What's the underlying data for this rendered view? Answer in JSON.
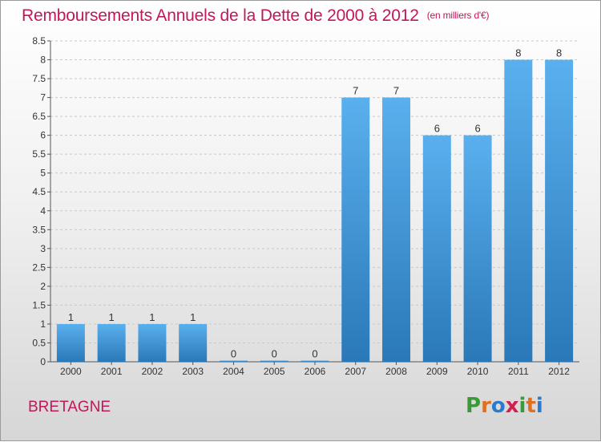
{
  "title": "Remboursements Annuels de la Dette de 2000 à 2012",
  "unit": "(en milliers d'€)",
  "region": "BRETAGNE",
  "brand": {
    "text": "Proxiti",
    "letters": [
      "P",
      "r",
      "o",
      "x",
      "i",
      "t",
      "i"
    ],
    "colors": [
      "#3a9a3a",
      "#e07020",
      "#2a7ad0",
      "#d02050",
      "#3a9a3a",
      "#e07020",
      "#2a7ad0"
    ]
  },
  "colors": {
    "title": "#c0185a",
    "bar_light": "#5ab0ee",
    "bar_dark": "#2a78b8",
    "grid": "#c8c8c8"
  },
  "chart_data": {
    "type": "bar",
    "categories": [
      "2000",
      "2001",
      "2002",
      "2003",
      "2004",
      "2005",
      "2006",
      "2007",
      "2008",
      "2009",
      "2010",
      "2011",
      "2012"
    ],
    "values": [
      1,
      1,
      1,
      1,
      0,
      0,
      0,
      7,
      7,
      6,
      6,
      8,
      8
    ],
    "data_labels": [
      "1",
      "1",
      "1",
      "1",
      "0",
      "0",
      "0",
      "7",
      "7",
      "6",
      "6",
      "8",
      "8"
    ],
    "ylim": [
      0,
      8.5
    ],
    "yticks": [
      0,
      0.5,
      1,
      1.5,
      2,
      2.5,
      3,
      3.5,
      4,
      4.5,
      5,
      5.5,
      6,
      6.5,
      7,
      7.5,
      8,
      8.5
    ],
    "ytick_labels": [
      "0",
      "0.5",
      "1",
      "1.5",
      "2",
      "2.5",
      "3",
      "3.5",
      "4",
      "4.5",
      "5",
      "5.5",
      "6",
      "6.5",
      "7",
      "7.5",
      "8",
      "8.5"
    ],
    "grid": true
  }
}
